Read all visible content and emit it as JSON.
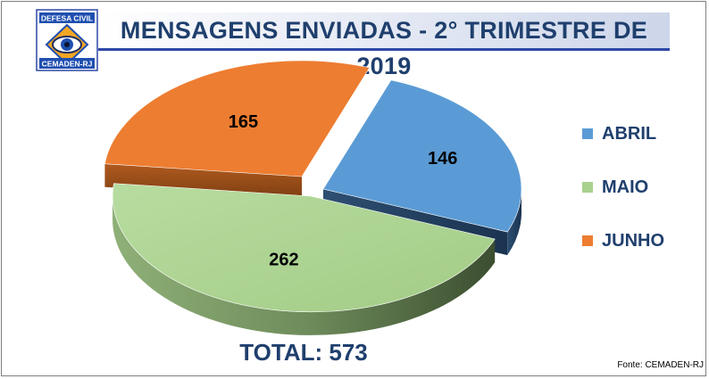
{
  "header": {
    "title": "MENSAGENS ENVIADAS - 2° TRIMESTRE DE 2019"
  },
  "logo": {
    "top_text": "DEFESA CIVIL",
    "bottom_text": "CEMADEN-RJ"
  },
  "chart_data": {
    "type": "pie",
    "categories": [
      "ABRIL",
      "MAIO",
      "JUNHO"
    ],
    "values": [
      146,
      262,
      165
    ],
    "colors": [
      "#5b9bd5",
      "#a9d18e",
      "#ed7d31"
    ],
    "legend_position": "right",
    "exploded": [
      "ABRIL",
      "JUNHO"
    ]
  },
  "legend": {
    "items": [
      {
        "label": "ABRIL",
        "color": "#5b9bd5"
      },
      {
        "label": "MAIO",
        "color": "#a9d18e"
      },
      {
        "label": "JUNHO",
        "color": "#ed7d31"
      }
    ]
  },
  "total": {
    "text": "TOTAL: 573"
  },
  "source": {
    "text": "Fonte: CEMADEN-RJ"
  }
}
